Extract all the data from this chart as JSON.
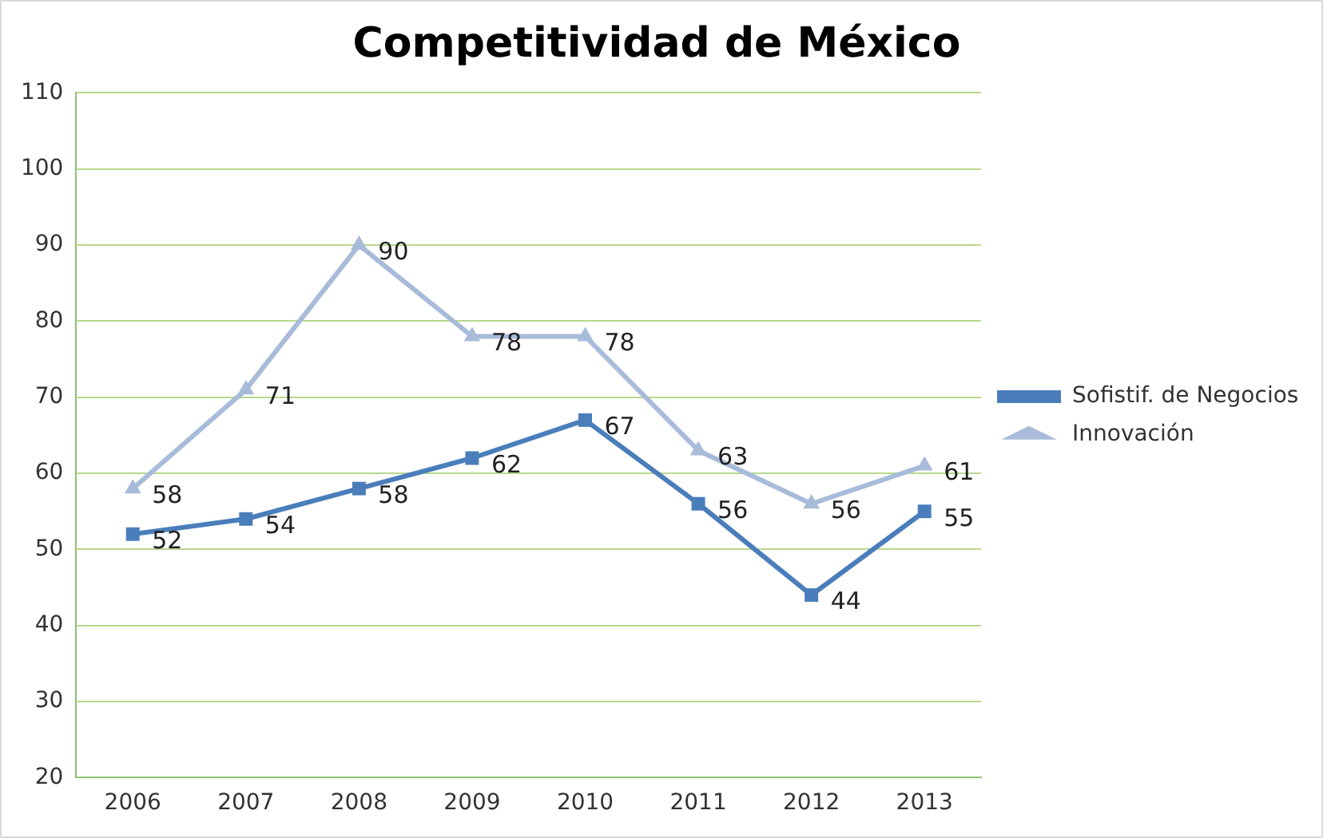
{
  "chart_data": {
    "type": "line",
    "title": "Competitividad de México",
    "categories": [
      "2006",
      "2007",
      "2008",
      "2009",
      "2010",
      "2011",
      "2012",
      "2013"
    ],
    "series": [
      {
        "name": "Sofistif. de Negocios",
        "color": "#4a7ebb",
        "marker": "square",
        "values": [
          52,
          54,
          58,
          62,
          67,
          56,
          44,
          55
        ]
      },
      {
        "name": "Innovación",
        "color": "#a8bbd9",
        "marker": "triangle",
        "values": [
          58,
          71,
          90,
          78,
          78,
          63,
          56,
          61
        ]
      }
    ],
    "ylim": [
      20,
      110
    ],
    "yticks": [
      20,
      30,
      40,
      50,
      60,
      70,
      80,
      90,
      100,
      110
    ],
    "grid": "y",
    "legend": "right",
    "data_labels": true
  }
}
